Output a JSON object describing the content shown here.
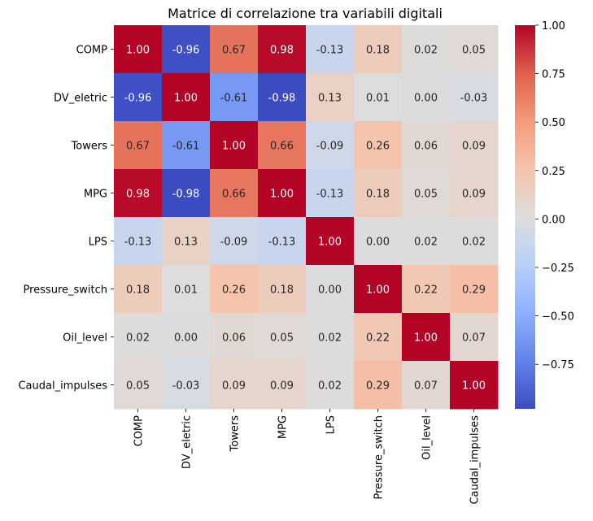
{
  "chart_data": {
    "type": "heatmap",
    "title": "Matrice di correlazione tra variabili digitali",
    "row_labels": [
      "COMP",
      "DV_eletric",
      "Towers",
      "MPG",
      "LPS",
      "Pressure_switch",
      "Oil_level",
      "Caudal_impulses"
    ],
    "col_labels": [
      "COMP",
      "DV_eletric",
      "Towers",
      "MPG",
      "LPS",
      "Pressure_switch",
      "Oil_level",
      "Caudal_impulses"
    ],
    "values": [
      [
        1.0,
        -0.96,
        0.67,
        0.98,
        -0.13,
        0.18,
        0.02,
        0.05
      ],
      [
        -0.96,
        1.0,
        -0.61,
        -0.98,
        0.13,
        0.01,
        0.0,
        -0.03
      ],
      [
        0.67,
        -0.61,
        1.0,
        0.66,
        -0.09,
        0.26,
        0.06,
        0.09
      ],
      [
        0.98,
        -0.98,
        0.66,
        1.0,
        -0.13,
        0.18,
        0.05,
        0.09
      ],
      [
        -0.13,
        0.13,
        -0.09,
        -0.13,
        1.0,
        0.0,
        0.02,
        0.02
      ],
      [
        0.18,
        0.01,
        0.26,
        0.18,
        0.0,
        1.0,
        0.22,
        0.29
      ],
      [
        0.02,
        0.0,
        0.06,
        0.05,
        0.02,
        0.22,
        1.0,
        0.07
      ],
      [
        0.05,
        -0.03,
        0.09,
        0.09,
        0.02,
        0.29,
        0.07,
        1.0
      ]
    ],
    "cell_labels": [
      [
        "1.00",
        "-0.96",
        "0.67",
        "0.98",
        "-0.13",
        "0.18",
        "0.02",
        "0.05"
      ],
      [
        "-0.96",
        "1.00",
        "-0.61",
        "-0.98",
        "0.13",
        "0.01",
        "0.00",
        "-0.03"
      ],
      [
        "0.67",
        "-0.61",
        "1.00",
        "0.66",
        "-0.09",
        "0.26",
        "0.06",
        "0.09"
      ],
      [
        "0.98",
        "-0.98",
        "0.66",
        "1.00",
        "-0.13",
        "0.18",
        "0.05",
        "0.09"
      ],
      [
        "-0.13",
        "0.13",
        "-0.09",
        "-0.13",
        "1.00",
        "0.00",
        "0.02",
        "0.02"
      ],
      [
        "0.18",
        "0.01",
        "0.26",
        "0.18",
        "0.00",
        "1.00",
        "0.22",
        "0.29"
      ],
      [
        "0.02",
        "0.00",
        "0.06",
        "0.05",
        "0.02",
        "0.22",
        "1.00",
        "0.07"
      ],
      [
        "0.05",
        "-0.03",
        "0.09",
        "0.09",
        "0.02",
        "0.29",
        "0.07",
        "1.00"
      ]
    ],
    "colormap": "coolwarm",
    "vmin": -0.98,
    "vmax": 1.0,
    "colorbar_ticks": [
      1.0,
      0.75,
      0.5,
      0.25,
      0.0,
      -0.25,
      -0.5,
      -0.75
    ],
    "colorbar_tick_labels": [
      "1.00",
      "0.75",
      "0.50",
      "0.25",
      "0.00",
      "−0.25",
      "−0.50",
      "−0.75"
    ],
    "xlabel": "",
    "ylabel": ""
  }
}
